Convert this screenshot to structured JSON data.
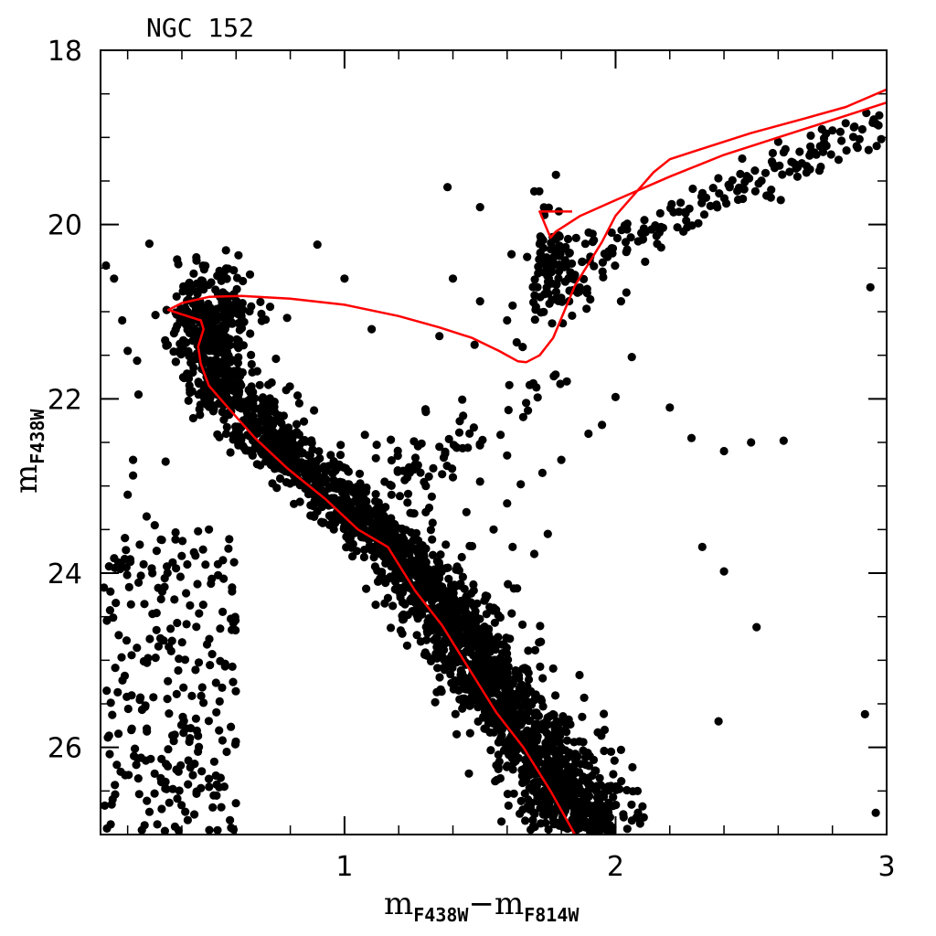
{
  "chart_data": {
    "type": "scatter",
    "title": "NGC 152",
    "xlabel": {
      "main1": "m",
      "sub1": "F438W",
      "sep": "−m",
      "sub2": "F814W"
    },
    "ylabel": {
      "main": "m",
      "sub": "F438W"
    },
    "xlim": [
      0.1,
      3.0
    ],
    "ylim": [
      27.0,
      18.0
    ],
    "y_inverted": true,
    "xticks": [
      1,
      2,
      3
    ],
    "yticks": [
      18,
      20,
      22,
      24,
      26
    ],
    "x_minor_step": 0.2,
    "y_minor_step": 0.5,
    "point_color": "#000000",
    "line_color": "#ff0000",
    "isochrone": [
      [
        1.85,
        27.0
      ],
      [
        1.76,
        26.5
      ],
      [
        1.66,
        26.0
      ],
      [
        1.56,
        25.6
      ],
      [
        1.46,
        25.1
      ],
      [
        1.36,
        24.6
      ],
      [
        1.26,
        24.2
      ],
      [
        1.16,
        23.7
      ],
      [
        1.05,
        23.5
      ],
      [
        0.93,
        23.15
      ],
      [
        0.79,
        22.8
      ],
      [
        0.67,
        22.45
      ],
      [
        0.57,
        22.1
      ],
      [
        0.5,
        21.85
      ],
      [
        0.47,
        21.6
      ],
      [
        0.46,
        21.4
      ],
      [
        0.48,
        21.2
      ],
      [
        0.47,
        21.1
      ],
      [
        0.42,
        21.05
      ],
      [
        0.35,
        20.98
      ],
      [
        0.4,
        20.9
      ],
      [
        0.5,
        20.83
      ],
      [
        0.62,
        20.82
      ],
      [
        0.8,
        20.85
      ],
      [
        1.0,
        20.92
      ],
      [
        1.2,
        21.05
      ],
      [
        1.35,
        21.18
      ],
      [
        1.47,
        21.3
      ],
      [
        1.57,
        21.45
      ],
      [
        1.64,
        21.57
      ],
      [
        1.67,
        21.58
      ],
      [
        1.72,
        21.5
      ],
      [
        1.77,
        21.3
      ],
      [
        1.81,
        21.0
      ],
      [
        1.85,
        20.7
      ],
      [
        1.9,
        20.45
      ],
      [
        1.95,
        20.2
      ],
      [
        2.0,
        19.9
      ],
      [
        2.07,
        19.65
      ],
      [
        2.14,
        19.4
      ],
      [
        2.2,
        19.25
      ],
      [
        2.3,
        19.15
      ],
      [
        2.5,
        18.95
      ],
      [
        2.7,
        18.78
      ],
      [
        2.85,
        18.65
      ],
      [
        3.0,
        18.45
      ]
    ],
    "isochrone_branch": [
      [
        3.0,
        18.6
      ],
      [
        2.8,
        18.8
      ],
      [
        2.6,
        19.0
      ],
      [
        2.4,
        19.2
      ],
      [
        2.2,
        19.45
      ],
      [
        2.0,
        19.72
      ],
      [
        1.87,
        19.9
      ],
      [
        1.78,
        20.08
      ],
      [
        1.76,
        20.15
      ],
      [
        1.74,
        20.0
      ],
      [
        1.72,
        19.85
      ],
      [
        1.76,
        19.85
      ],
      [
        1.84,
        19.85
      ]
    ],
    "scatter_generation": {
      "seed": 152,
      "ms_width": 0.06,
      "ms_ymin": 21.0,
      "ms_n": 2500,
      "field_x": [
        0.1,
        0.6
      ],
      "field_y": [
        23.5,
        27.0
      ],
      "field_n": 260,
      "rc_center": [
        1.78,
        20.5
      ],
      "rc_spread": [
        0.06,
        0.3
      ],
      "rc_n": 110,
      "rgb_n": 150
    },
    "sparse_points": [
      [
        1.38,
        19.57
      ],
      [
        1.5,
        19.8
      ],
      [
        1.78,
        19.43
      ],
      [
        1.7,
        19.62
      ],
      [
        1.92,
        20.18
      ],
      [
        0.9,
        20.23
      ],
      [
        1.0,
        20.62
      ],
      [
        1.4,
        20.62
      ],
      [
        1.5,
        20.88
      ],
      [
        1.62,
        20.93
      ],
      [
        1.6,
        21.1
      ],
      [
        1.48,
        21.38
      ],
      [
        1.35,
        21.28
      ],
      [
        1.1,
        21.2
      ],
      [
        2.0,
        21.98
      ],
      [
        1.6,
        22.65
      ],
      [
        2.02,
        20.88
      ],
      [
        2.04,
        20.78
      ],
      [
        2.06,
        21.52
      ],
      [
        2.2,
        22.1
      ],
      [
        2.28,
        22.45
      ],
      [
        2.4,
        22.6
      ],
      [
        2.5,
        22.5
      ],
      [
        2.62,
        22.48
      ],
      [
        2.32,
        23.7
      ],
      [
        2.4,
        23.98
      ],
      [
        2.52,
        24.62
      ],
      [
        2.38,
        25.7
      ],
      [
        2.92,
        25.62
      ],
      [
        2.96,
        26.75
      ],
      [
        2.94,
        20.72
      ],
      [
        2.98,
        19.02
      ],
      [
        2.46,
        19.42
      ],
      [
        2.6,
        19.05
      ],
      [
        2.8,
        18.92
      ],
      [
        2.9,
        19.02
      ],
      [
        2.72,
        18.98
      ],
      [
        2.58,
        19.18
      ],
      [
        2.36,
        19.58
      ],
      [
        2.24,
        19.75
      ],
      [
        0.28,
        20.22
      ],
      [
        0.15,
        20.62
      ],
      [
        0.12,
        20.47
      ],
      [
        0.18,
        21.1
      ],
      [
        0.1,
        21.35
      ],
      [
        0.2,
        21.45
      ],
      [
        0.24,
        21.95
      ],
      [
        0.34,
        22.72
      ],
      [
        0.22,
        22.7
      ],
      [
        0.22,
        22.88
      ],
      [
        0.2,
        23.1
      ],
      [
        0.27,
        23.35
      ],
      [
        0.3,
        23.45
      ],
      [
        0.45,
        23.8
      ],
      [
        0.42,
        23.9
      ],
      [
        0.5,
        23.5
      ],
      [
        1.9,
        22.4
      ],
      [
        1.3,
        22.15
      ],
      [
        1.35,
        22.55
      ],
      [
        1.82,
        21.8
      ],
      [
        1.95,
        22.3
      ],
      [
        1.45,
        23.3
      ],
      [
        1.55,
        23.5
      ],
      [
        1.62,
        23.7
      ],
      [
        1.7,
        23.78
      ],
      [
        1.75,
        23.55
      ],
      [
        1.4,
        22.9
      ],
      [
        1.3,
        23.0
      ],
      [
        1.5,
        22.95
      ],
      [
        1.65,
        22.98
      ],
      [
        1.73,
        22.85
      ],
      [
        1.8,
        22.7
      ],
      [
        1.6,
        23.2
      ]
    ]
  }
}
